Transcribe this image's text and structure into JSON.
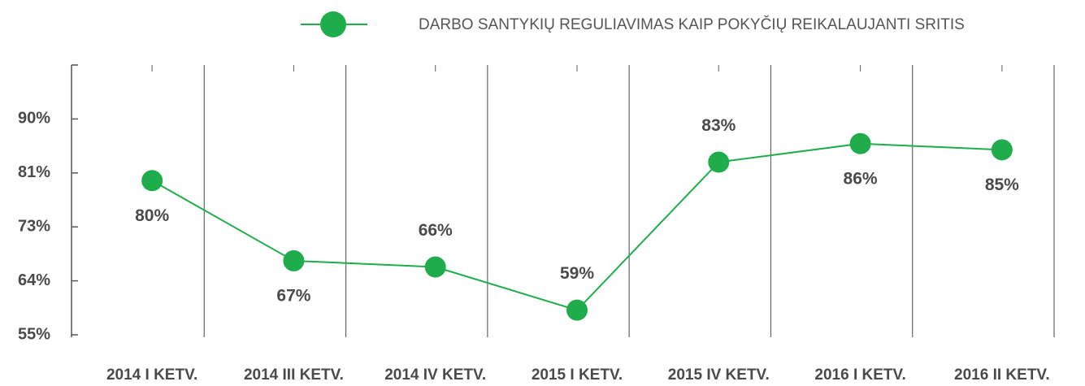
{
  "chart_data": {
    "type": "line",
    "categories": [
      "2014 I KETV.",
      "2014 III KETV.",
      "2014 IV KETV.",
      "2015 I KETV.",
      "2015 IV KETV.",
      "2016 I KETV.",
      "2016 II KETV."
    ],
    "series": [
      {
        "name": "DARBO SANTYKIŲ REGULIAVIMAS KAIP POKYČIŲ REIKALAUJANTI SRITIS",
        "color": "#1fad4b",
        "values": [
          80,
          67,
          66,
          59,
          83,
          86,
          85
        ],
        "value_labels": [
          "80%",
          "67%",
          "66%",
          "59%",
          "83%",
          "86%",
          "85%"
        ]
      }
    ],
    "ylim": [
      55,
      98.75
    ],
    "yticks": [
      {
        "value": 55,
        "label": "55%"
      },
      {
        "value": 63.75,
        "label": "64%"
      },
      {
        "value": 72.5,
        "label": "73%"
      },
      {
        "value": 81.25,
        "label": "81%"
      },
      {
        "value": 90,
        "label": "90%"
      }
    ],
    "grid": true
  }
}
